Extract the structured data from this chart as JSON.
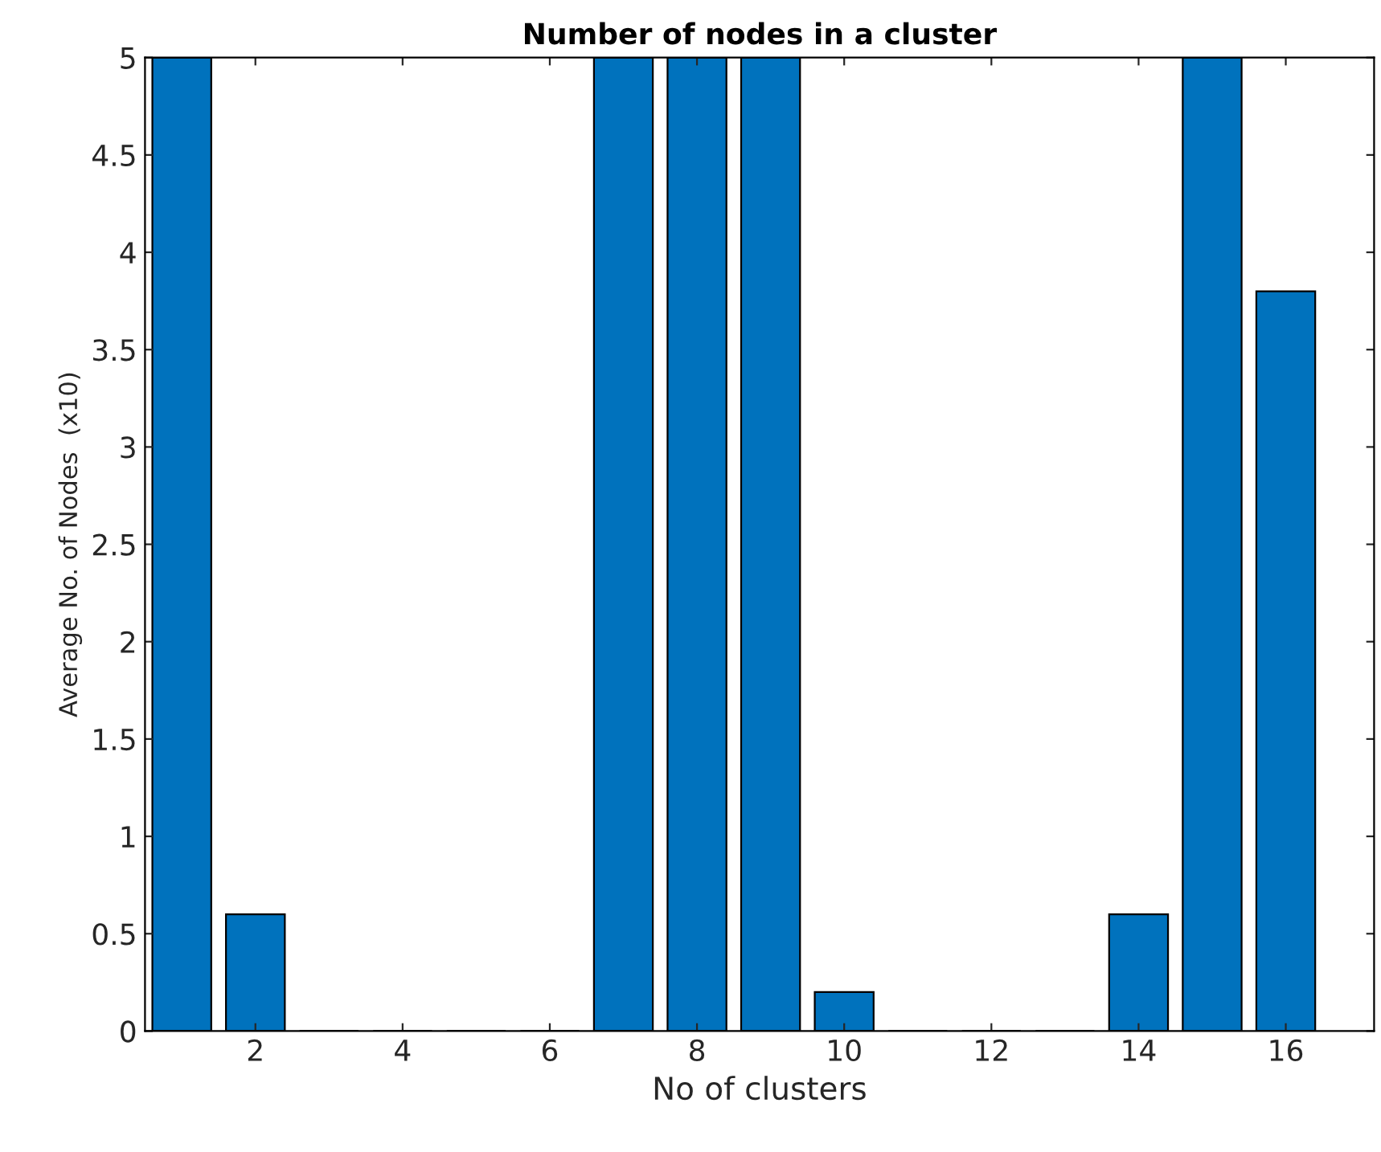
{
  "chart_data": {
    "type": "bar",
    "title": "Number of nodes in a cluster",
    "xlabel": "No of clusters",
    "ylabel": "Average No. of Nodes  (x10)",
    "x": [
      1,
      2,
      3,
      4,
      5,
      6,
      7,
      8,
      9,
      10,
      11,
      12,
      13,
      14,
      15,
      16
    ],
    "values": [
      5,
      0.6,
      0,
      0,
      0,
      0,
      5,
      5,
      5,
      0.2,
      0,
      0,
      0,
      0.6,
      5,
      3.8
    ],
    "color": "#0072bd",
    "xlim": [
      0.5,
      17.2
    ],
    "xticks": [
      2,
      4,
      6,
      8,
      10,
      12,
      14,
      16
    ],
    "ylim": [
      0,
      5
    ],
    "yticks": [
      0,
      0.5,
      1,
      1.5,
      2,
      2.5,
      3,
      3.5,
      4,
      4.5,
      5
    ],
    "grid": false,
    "legend": false
  }
}
